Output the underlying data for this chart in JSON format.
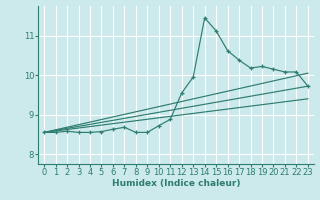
{
  "xlabel": "Humidex (Indice chaleur)",
  "bg_color": "#cce9eb",
  "grid_color": "#ffffff",
  "line_color": "#2e7d6e",
  "xlim": [
    -0.5,
    23.5
  ],
  "ylim": [
    7.75,
    11.75
  ],
  "yticks": [
    8,
    9,
    10,
    11
  ],
  "xticks": [
    0,
    1,
    2,
    3,
    4,
    5,
    6,
    7,
    8,
    9,
    10,
    11,
    12,
    13,
    14,
    15,
    16,
    17,
    18,
    19,
    20,
    21,
    22,
    23
  ],
  "main_line": {
    "x": [
      0,
      1,
      2,
      3,
      4,
      5,
      6,
      7,
      8,
      9,
      10,
      11,
      12,
      13,
      14,
      15,
      16,
      17,
      18,
      19,
      20,
      21,
      22,
      23
    ],
    "y": [
      8.55,
      8.55,
      8.58,
      8.55,
      8.55,
      8.57,
      8.63,
      8.68,
      8.55,
      8.55,
      8.72,
      8.88,
      9.55,
      9.95,
      11.45,
      11.12,
      10.62,
      10.38,
      10.18,
      10.22,
      10.15,
      10.08,
      10.08,
      9.72
    ]
  },
  "extra_lines": [
    {
      "x": [
        0,
        7,
        8,
        9,
        10,
        11,
        12,
        13,
        14,
        15,
        16,
        17,
        18,
        19,
        20,
        21,
        22,
        23
      ],
      "y": [
        8.55,
        8.68,
        8.55,
        8.55,
        8.72,
        8.88,
        9.55,
        9.95,
        11.45,
        11.12,
        10.62,
        10.38,
        10.18,
        10.22,
        10.15,
        10.08,
        10.08,
        9.72
      ]
    },
    {
      "x": [
        0,
        23
      ],
      "y": [
        8.55,
        10.05
      ]
    },
    {
      "x": [
        0,
        23
      ],
      "y": [
        8.55,
        9.72
      ]
    },
    {
      "x": [
        0,
        23
      ],
      "y": [
        8.55,
        9.4
      ]
    }
  ]
}
